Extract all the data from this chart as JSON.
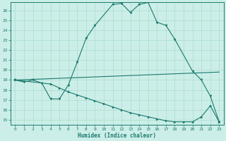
{
  "xlabel": "Humidex (Indice chaleur)",
  "bg_color": "#cceee8",
  "grid_color": "#aaddcc",
  "line_color": "#1a7a6e",
  "xlim": [
    -0.5,
    23.5
  ],
  "ylim": [
    14.5,
    26.8
  ],
  "yticks": [
    15,
    16,
    17,
    18,
    19,
    20,
    21,
    22,
    23,
    24,
    25,
    26
  ],
  "xticks": [
    0,
    1,
    2,
    3,
    4,
    5,
    6,
    7,
    8,
    9,
    10,
    11,
    12,
    13,
    14,
    15,
    16,
    17,
    18,
    19,
    20,
    21,
    22,
    23
  ],
  "line1_x": [
    0,
    1,
    2,
    3,
    4,
    5,
    6,
    7,
    8,
    9,
    11,
    12,
    13,
    14,
    15,
    16,
    17,
    18,
    20,
    21,
    22,
    23
  ],
  "line1_y": [
    19.0,
    18.8,
    19.0,
    18.7,
    17.1,
    17.1,
    18.5,
    20.8,
    23.2,
    24.5,
    26.6,
    26.7,
    25.8,
    26.6,
    26.8,
    24.8,
    24.5,
    23.1,
    19.9,
    19.0,
    17.4,
    14.8
  ],
  "line2_x": [
    0,
    23
  ],
  "line2_y": [
    19.0,
    19.8
  ],
  "line3_x": [
    0,
    4,
    5,
    6,
    7,
    8,
    9,
    10,
    11,
    12,
    13,
    14,
    15,
    16,
    17,
    18,
    19,
    20,
    21,
    22,
    23
  ],
  "line3_y": [
    19.0,
    18.6,
    18.2,
    17.8,
    17.5,
    17.2,
    16.9,
    16.6,
    16.3,
    16.0,
    15.7,
    15.5,
    15.3,
    15.1,
    14.9,
    14.8,
    14.8,
    14.8,
    15.3,
    16.4,
    14.8
  ]
}
